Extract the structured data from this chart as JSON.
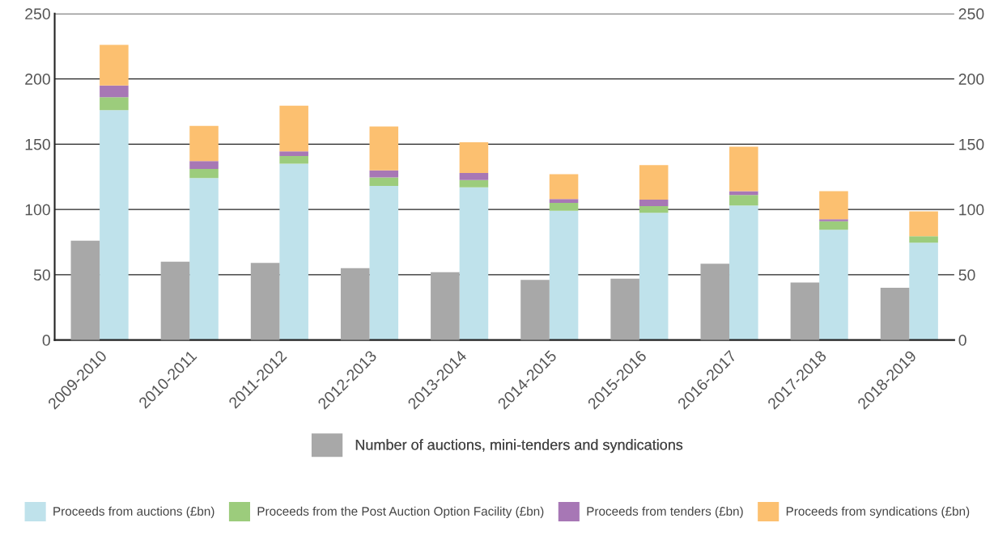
{
  "chart_data": {
    "type": "bar",
    "stacked": true,
    "categories": [
      "2009-2010",
      "2010-2011",
      "2011-2012",
      "2012-2013",
      "2013-2014",
      "2014-2015",
      "2015-2016",
      "2016-2017",
      "2017-2018",
      "2018-2019"
    ],
    "series": [
      {
        "name": "Number of auctions, mini-tenders and syndications",
        "color": "#a8a8a8",
        "axis": "y2",
        "values": [
          76,
          60,
          59,
          55,
          52,
          46,
          47,
          58.5,
          44,
          40
        ]
      },
      {
        "name": "Proceeds from auctions (£bn)",
        "color": "#bfe2eb",
        "values": [
          176,
          124,
          135,
          118,
          117,
          99,
          97.5,
          103,
          84.5,
          74.5
        ]
      },
      {
        "name": "Proceeds from the Post Auction Option Facility (£bn)",
        "color": "#9ccc7c",
        "values": [
          10,
          7,
          6,
          6.5,
          5.5,
          6,
          5,
          8,
          6.5,
          5
        ]
      },
      {
        "name": "Proceeds from tenders (£bn)",
        "color": "#a777b5",
        "values": [
          9,
          6,
          3.5,
          5.5,
          5.5,
          3,
          5,
          3,
          1.5,
          0
        ]
      },
      {
        "name": "Proceeds from syndications (£bn)",
        "color": "#fcc070",
        "values": [
          31,
          27,
          35,
          33.5,
          23.5,
          19,
          26.5,
          34,
          21.5,
          19
        ]
      }
    ],
    "ylim": [
      0,
      250
    ],
    "y2lim": [
      0,
      250
    ],
    "y2ticks": [
      0,
      50,
      100,
      150,
      200,
      250
    ],
    "yticks": [
      0,
      50,
      100,
      150,
      200,
      250
    ],
    "grid": "y",
    "legend": "bottom"
  }
}
